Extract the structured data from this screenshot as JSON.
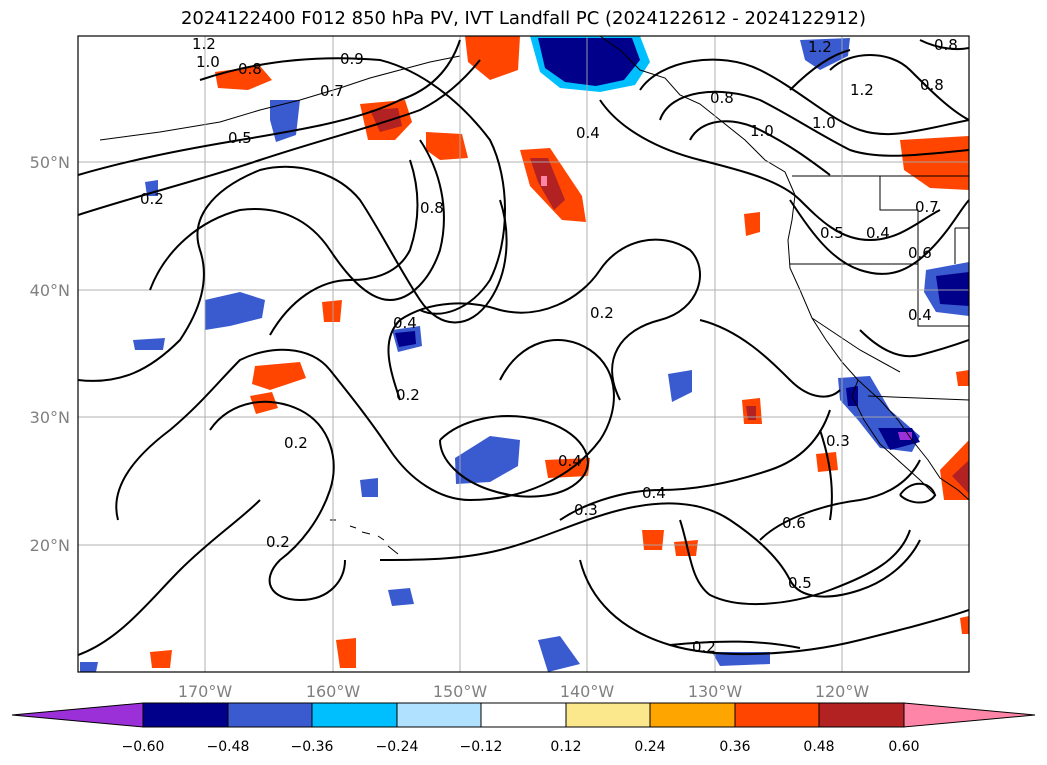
{
  "title": "2024122400 F012 850 hPa PV, IVT Landfall PC (2024122612 - 2024122912)",
  "colors": {
    "contour": "#000000",
    "grid": "#a9a9a9",
    "coast": "#000000",
    "neg_extreme": "#9b30d9",
    "neg_060": "#00008b",
    "neg_048": "#3a5bd0",
    "neg_036": "#00bfff",
    "neg_024": "#b0e2ff",
    "neutral": "#ffffff",
    "pos_012": "#fce88c",
    "pos_024": "#ffa500",
    "pos_036": "#ff4500",
    "pos_048": "#b22222",
    "pos_extreme": "#ff85a8"
  },
  "lat_labels": [
    "50°N",
    "40°N",
    "30°N",
    "20°N"
  ],
  "lon_labels": [
    "170°W",
    "160°W",
    "150°W",
    "140°W",
    "130°W",
    "120°W"
  ],
  "colorbar": {
    "ticks": [
      "−0.60",
      "−0.48",
      "−0.36",
      "−0.24",
      "−0.12",
      "0.12",
      "0.24",
      "0.36",
      "0.48",
      "0.60"
    ],
    "levels": [
      -0.6,
      -0.48,
      -0.36,
      -0.24,
      -0.12,
      0.12,
      0.24,
      0.36,
      0.48,
      0.6
    ]
  },
  "contour_labels": [
    "1.2",
    "1.0",
    "0.8",
    "0.9",
    "0.7",
    "0.5",
    "0.2",
    "0.8",
    "0.4",
    "0.2",
    "0.4",
    "0.2",
    "0.2",
    "0.2",
    "0.4",
    "0.3",
    "0.4",
    "0.6",
    "0.5",
    "0.2",
    "0.3",
    "0.4",
    "0.8",
    "1.0",
    "1.2",
    "1.2",
    "0.8",
    "1.0",
    "0.7",
    "0.6",
    "0.5",
    "0.4",
    "0.8"
  ]
}
